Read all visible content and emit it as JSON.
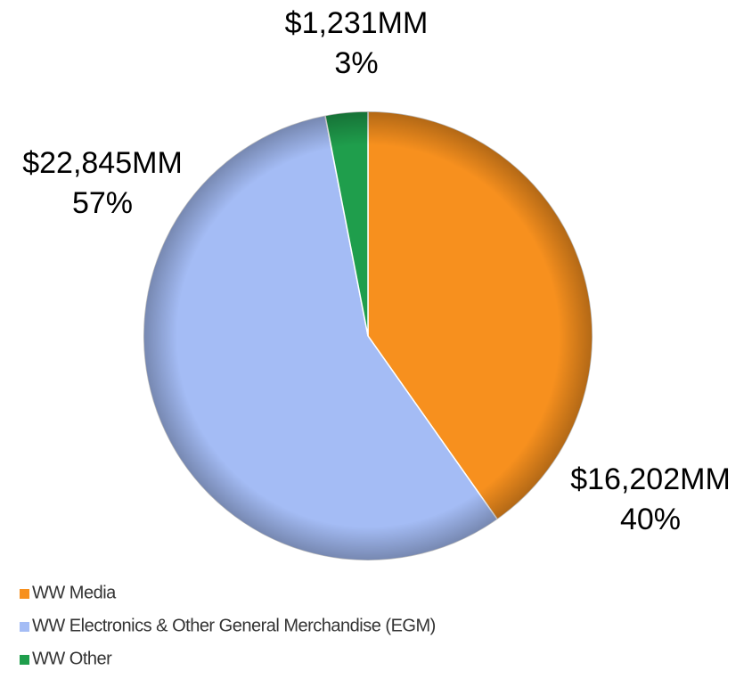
{
  "chart_data": {
    "type": "pie",
    "categories": [
      "WW Media",
      "WW Electronics & Other General Merchandise (EGM)",
      "WW Other"
    ],
    "values": [
      16202,
      22845,
      1231
    ],
    "value_labels": [
      "$16,202MM",
      "$22,845MM",
      "$1,231MM"
    ],
    "percent_labels": [
      "40%",
      "57%",
      "3%"
    ],
    "colors": [
      "#f7901e",
      "#a4bcf5",
      "#1f9e4c"
    ],
    "legend": "bottom-left"
  }
}
